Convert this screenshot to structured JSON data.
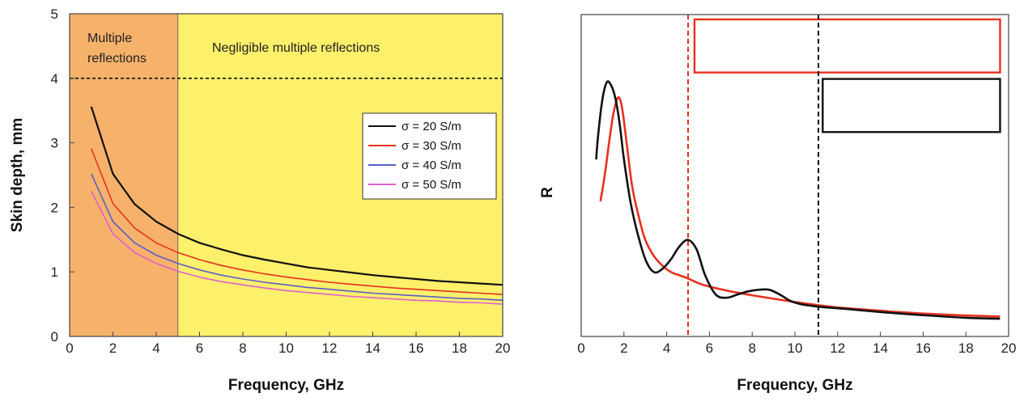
{
  "chart_data": [
    {
      "type": "line",
      "xlabel": "Frequency, GHz",
      "ylabel": "Skin depth, mm",
      "xlim": [
        0,
        20
      ],
      "ylim": [
        0,
        5
      ],
      "xticks": [
        0,
        2,
        4,
        6,
        8,
        10,
        12,
        14,
        16,
        18,
        20
      ],
      "yticks": [
        0,
        1,
        2,
        3,
        4,
        5
      ],
      "legend_position": "right",
      "regions": [
        {
          "label": "Multiple reflections",
          "x_from": 0,
          "x_to": 5,
          "color": "#f6b26b"
        },
        {
          "label": "Negligible multiple reflections",
          "x_from": 5,
          "x_to": 20,
          "color": "#fdf06b"
        }
      ],
      "hline": {
        "y": 4,
        "style": "dashed",
        "color": "#111111"
      },
      "x": [
        1,
        2,
        3,
        4,
        5,
        6,
        7,
        8,
        9,
        10,
        11,
        12,
        13,
        14,
        15,
        16,
        17,
        18,
        19,
        20
      ],
      "series": [
        {
          "name": "σ = 20 S/m",
          "color": "#111111",
          "values": [
            3.56,
            2.52,
            2.05,
            1.78,
            1.59,
            1.45,
            1.35,
            1.26,
            1.19,
            1.13,
            1.07,
            1.03,
            0.99,
            0.95,
            0.92,
            0.89,
            0.86,
            0.84,
            0.82,
            0.8
          ]
        },
        {
          "name": "σ = 30 S/m",
          "color": "#e8311f",
          "values": [
            2.91,
            2.06,
            1.68,
            1.45,
            1.3,
            1.19,
            1.1,
            1.03,
            0.97,
            0.92,
            0.88,
            0.84,
            0.81,
            0.78,
            0.75,
            0.73,
            0.71,
            0.69,
            0.67,
            0.65
          ]
        },
        {
          "name": "σ = 40 S/m",
          "color": "#5a5ec8",
          "values": [
            2.52,
            1.78,
            1.45,
            1.26,
            1.13,
            1.03,
            0.95,
            0.89,
            0.84,
            0.8,
            0.76,
            0.73,
            0.7,
            0.67,
            0.65,
            0.63,
            0.61,
            0.59,
            0.58,
            0.56
          ]
        },
        {
          "name": "σ = 50 S/m",
          "color": "#e060d0",
          "values": [
            2.25,
            1.59,
            1.3,
            1.13,
            1.01,
            0.92,
            0.85,
            0.8,
            0.75,
            0.71,
            0.68,
            0.65,
            0.62,
            0.6,
            0.58,
            0.56,
            0.55,
            0.53,
            0.52,
            0.5
          ]
        }
      ]
    },
    {
      "type": "line",
      "xlabel": "Frequency, GHz",
      "ylabel": "R",
      "xlim": [
        0,
        20
      ],
      "ylim": [
        0,
        1
      ],
      "xticks": [
        0,
        2,
        4,
        6,
        8,
        10,
        12,
        14,
        16,
        18,
        20
      ],
      "vlines": [
        {
          "x": 5.0,
          "color": "#e8311f",
          "style": "dashed"
        },
        {
          "x": 11.1,
          "color": "#111111",
          "style": "dashed"
        }
      ],
      "boxes": [
        {
          "color": "#e8311f",
          "x_from": 5.3,
          "x_to": 19.6,
          "y_from": 0.82,
          "y_to": 0.985
        },
        {
          "color": "#111111",
          "x_from": 11.3,
          "x_to": 19.6,
          "y_from": 0.635,
          "y_to": 0.8
        }
      ],
      "series": [
        {
          "color": "#111111",
          "x": [
            0.7,
            0.8,
            1.0,
            1.2,
            1.4,
            1.6,
            1.8,
            2.0,
            2.3,
            2.6,
            3.0,
            3.4,
            3.8,
            4.2,
            4.6,
            5.0,
            5.4,
            5.8,
            6.3,
            6.8,
            7.3,
            7.8,
            8.3,
            8.8,
            9.3,
            9.8,
            10.3,
            10.8,
            11.5,
            12.5,
            14,
            16,
            18,
            19.6
          ],
          "y": [
            0.55,
            0.63,
            0.74,
            0.79,
            0.78,
            0.74,
            0.66,
            0.55,
            0.42,
            0.33,
            0.24,
            0.2,
            0.21,
            0.24,
            0.28,
            0.3,
            0.27,
            0.19,
            0.13,
            0.12,
            0.13,
            0.14,
            0.145,
            0.145,
            0.13,
            0.11,
            0.1,
            0.095,
            0.09,
            0.085,
            0.076,
            0.066,
            0.058,
            0.055
          ]
        },
        {
          "color": "#e8311f",
          "x": [
            0.9,
            1.1,
            1.3,
            1.5,
            1.7,
            1.85,
            2.0,
            2.2,
            2.4,
            2.7,
            3.0,
            3.4,
            3.8,
            4.2,
            4.6,
            5.0,
            5.5,
            6,
            7,
            8,
            9,
            10,
            11,
            12,
            13,
            14,
            15,
            16,
            17,
            18,
            19,
            19.6
          ],
          "y": [
            0.42,
            0.5,
            0.6,
            0.69,
            0.74,
            0.73,
            0.67,
            0.56,
            0.46,
            0.37,
            0.3,
            0.25,
            0.22,
            0.2,
            0.19,
            0.18,
            0.165,
            0.155,
            0.14,
            0.128,
            0.117,
            0.107,
            0.098,
            0.09,
            0.085,
            0.08,
            0.075,
            0.071,
            0.068,
            0.065,
            0.063,
            0.062
          ]
        }
      ]
    }
  ],
  "left_legend": [
    "σ = 20 S/m",
    "σ = 30 S/m",
    "σ = 40 S/m",
    "σ = 50 S/m"
  ]
}
